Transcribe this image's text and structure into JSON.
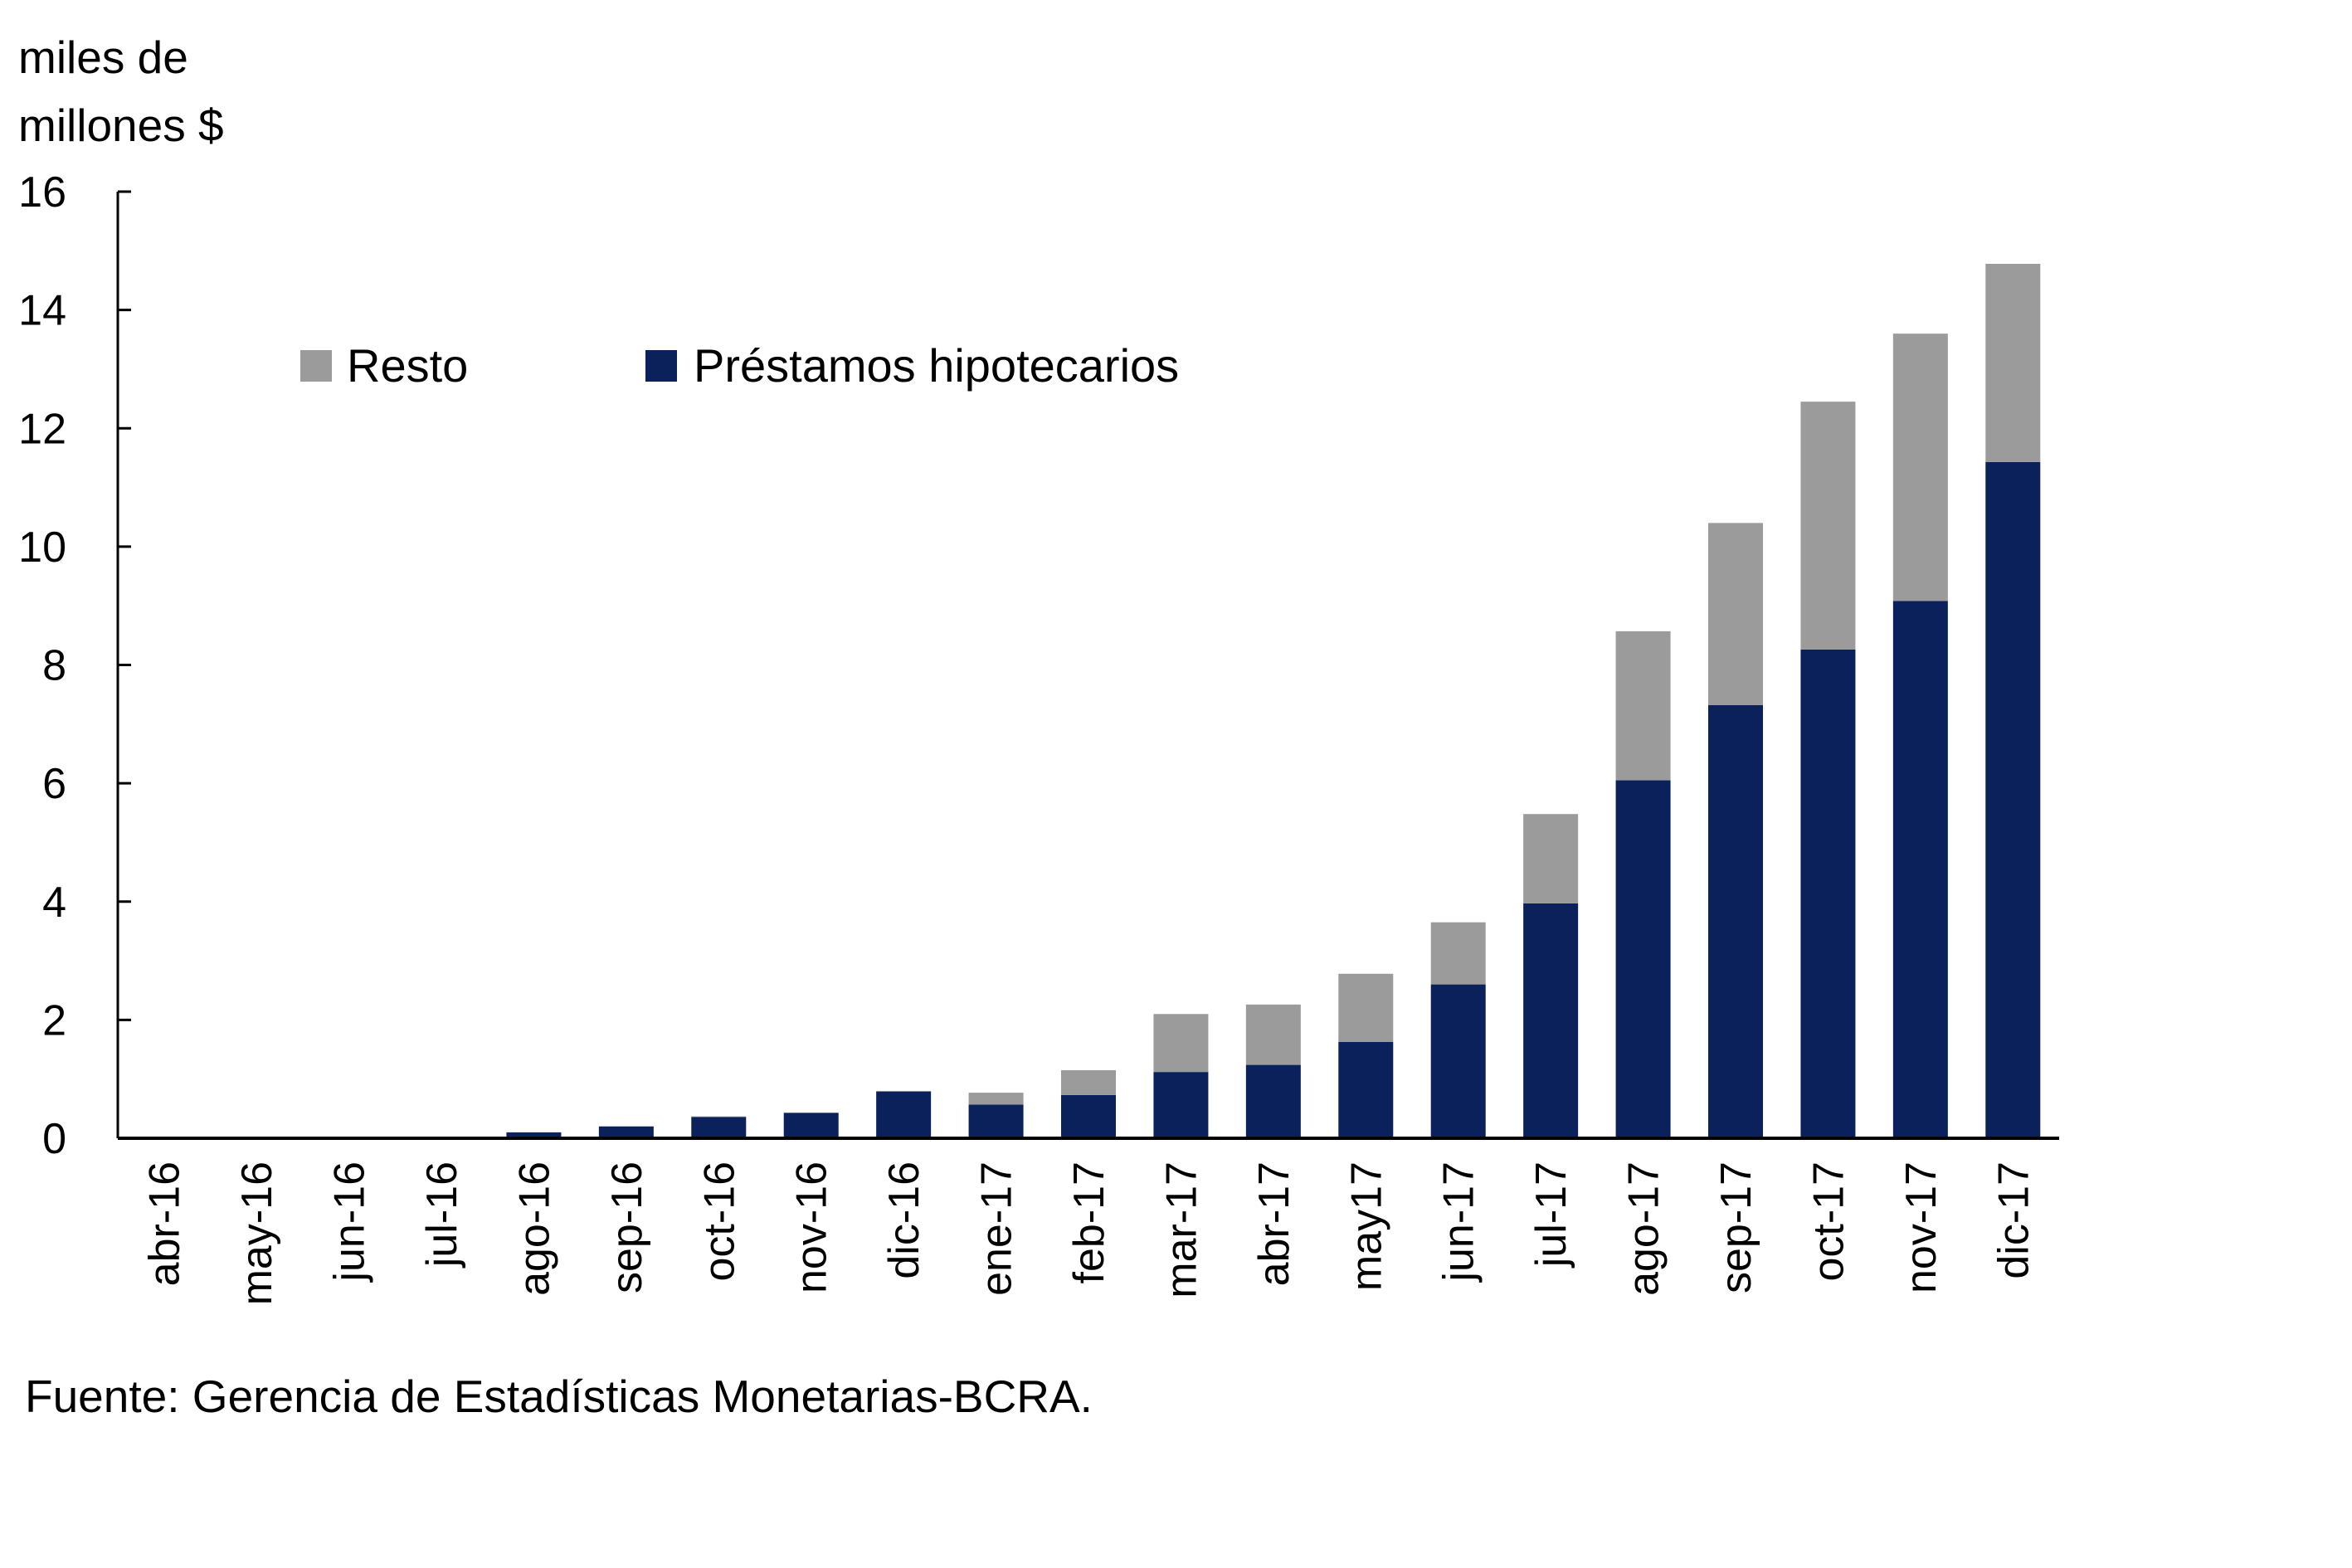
{
  "chart_data": {
    "type": "bar",
    "stacked": true,
    "ylabel": "miles de millones $",
    "ylabel_lines": [
      "miles de",
      "millones $"
    ],
    "ylim": [
      0,
      16
    ],
    "yticks": [
      0,
      2,
      4,
      6,
      8,
      10,
      12,
      14,
      16
    ],
    "grid": false,
    "legend_position": "top-left",
    "categories": [
      "abr-16",
      "may-16",
      "jun-16",
      "jul-16",
      "ago-16",
      "sep-16",
      "oct-16",
      "nov-16",
      "dic-16",
      "ene-17",
      "feb-17",
      "mar-17",
      "abr-17",
      "may17",
      "jun-17",
      "jul-17",
      "ago-17",
      "sep-17",
      "oct-17",
      "nov-17",
      "dic-17"
    ],
    "series": [
      {
        "name": "Préstamos hipotecarios",
        "color": "#0a215c",
        "values": [
          0,
          0.01,
          0.01,
          0.01,
          0.1,
          0.2,
          0.36,
          0.43,
          0.79,
          0.57,
          0.73,
          1.12,
          1.24,
          1.63,
          2.6,
          3.97,
          6.05,
          7.32,
          8.26,
          9.08,
          11.43
        ]
      },
      {
        "name": "Resto",
        "color": "#9b9b9b",
        "values": [
          0,
          0,
          0,
          0,
          0,
          0,
          0.01,
          0,
          0.01,
          0.2,
          0.42,
          0.98,
          1.02,
          1.15,
          1.05,
          1.51,
          2.52,
          3.08,
          4.19,
          4.52,
          3.35
        ]
      }
    ],
    "legend": [
      "Resto",
      "Préstamos hipotecarios"
    ]
  },
  "source": "Fuente: Gerencia de Estadísticas Monetarias-BCRA."
}
